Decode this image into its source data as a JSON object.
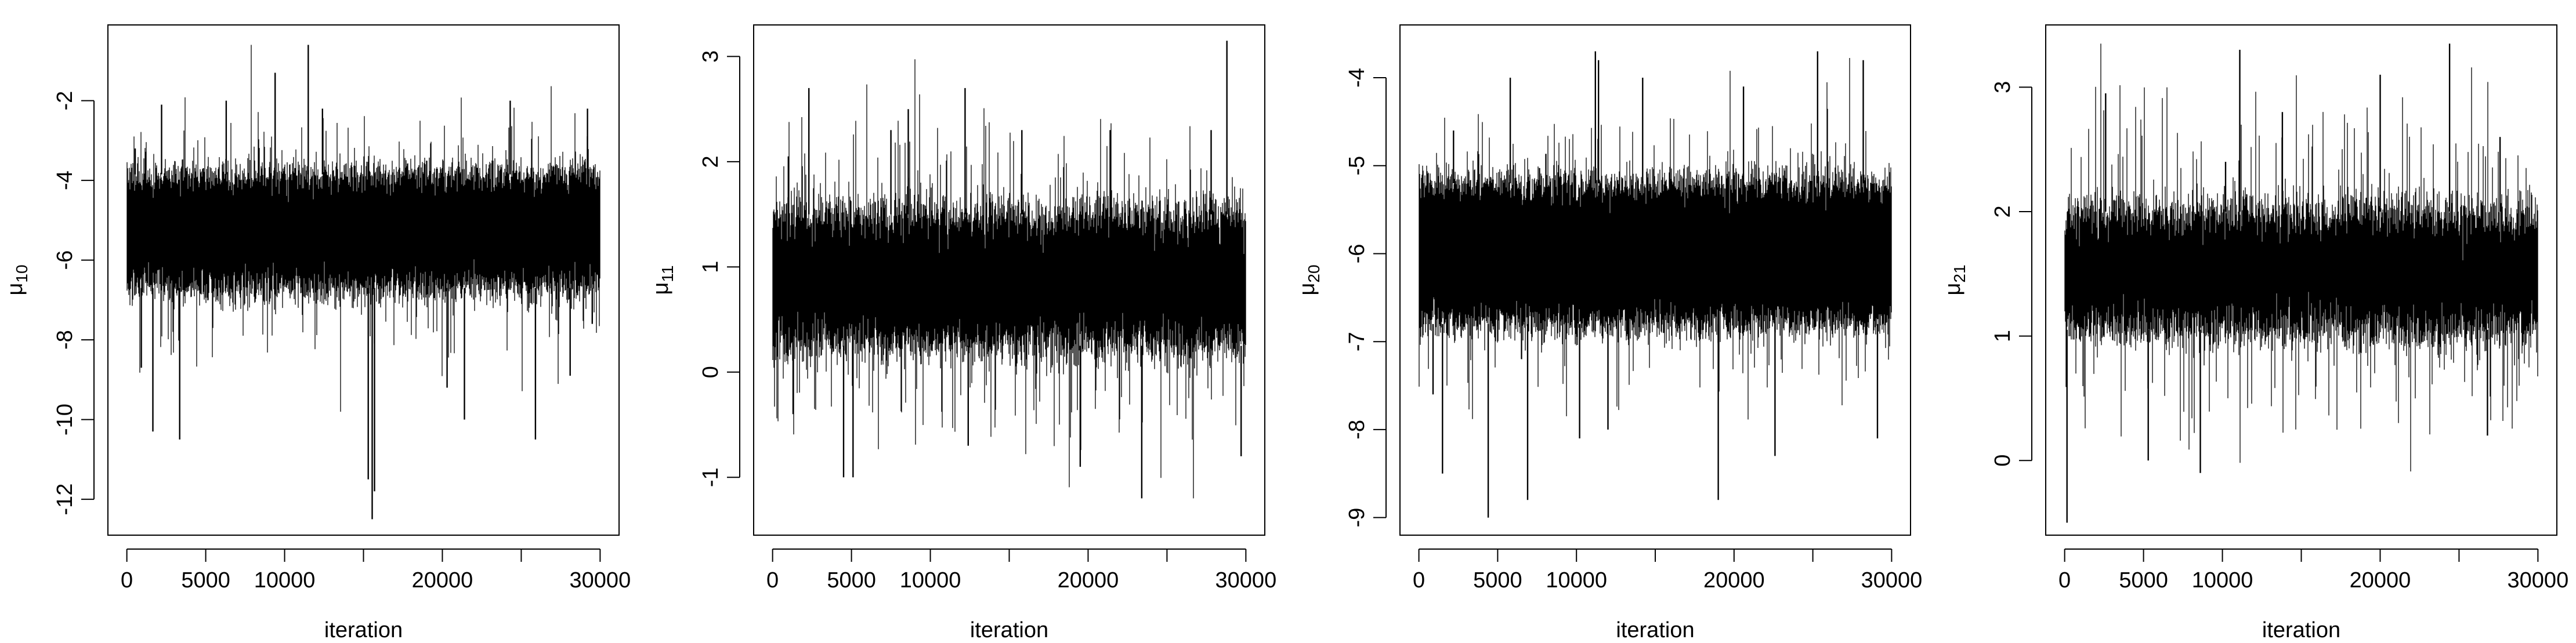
{
  "chart_data": [
    {
      "type": "line",
      "xlabel": "iteration",
      "ylabel": "μ",
      "ylabel_sub": "10",
      "x_ticks": [
        0,
        5000,
        10000,
        20000,
        30000
      ],
      "x_ticks_unlabeled": [
        15000,
        25000
      ],
      "xlim": [
        -1200,
        31200
      ],
      "y_ticks": [
        -2,
        -4,
        -6,
        -8,
        -10,
        -12
      ],
      "ylim": [
        -12.9,
        -0.1
      ],
      "n_iter": 30000,
      "trace": {
        "mean": -5.3,
        "sd": 0.68,
        "band_low": -6.7,
        "band_high": -3.85,
        "min": -12.5,
        "max": -0.6,
        "seed": 11
      },
      "spikes": [
        {
          "x": 530,
          "y": -3.2
        },
        {
          "x": 920,
          "y": -8.7
        },
        {
          "x": 1650,
          "y": -10.3
        },
        {
          "x": 2200,
          "y": -2.1
        },
        {
          "x": 3350,
          "y": -10.5
        },
        {
          "x": 6300,
          "y": -2.0
        },
        {
          "x": 9400,
          "y": -1.3
        },
        {
          "x": 11500,
          "y": -0.6
        },
        {
          "x": 12400,
          "y": -2.2
        },
        {
          "x": 15300,
          "y": -11.5
        },
        {
          "x": 15550,
          "y": -12.5
        },
        {
          "x": 15700,
          "y": -11.8
        },
        {
          "x": 20300,
          "y": -9.2
        },
        {
          "x": 21400,
          "y": -10.0
        },
        {
          "x": 24300,
          "y": -2.0
        },
        {
          "x": 25900,
          "y": -10.5
        },
        {
          "x": 28100,
          "y": -8.9
        },
        {
          "x": 29200,
          "y": -2.2
        },
        {
          "x": 29500,
          "y": -7.6
        }
      ]
    },
    {
      "type": "line",
      "xlabel": "iteration",
      "ylabel": "μ",
      "ylabel_sub": "11",
      "x_ticks": [
        0,
        5000,
        10000,
        20000,
        30000
      ],
      "x_ticks_unlabeled": [
        15000,
        25000
      ],
      "xlim": [
        -1200,
        31200
      ],
      "y_ticks": [
        3,
        2,
        1,
        0,
        -1
      ],
      "ylim": [
        -1.55,
        3.3
      ],
      "n_iter": 30000,
      "trace": {
        "mean": 0.8,
        "sd": 0.35,
        "band_low": 0.25,
        "band_high": 1.5,
        "min": -1.2,
        "max": 3.2,
        "seed": 23
      },
      "spikes": [
        {
          "x": 1000,
          "y": 2.05
        },
        {
          "x": 1300,
          "y": -0.4
        },
        {
          "x": 2300,
          "y": 2.7
        },
        {
          "x": 4500,
          "y": -1.0
        },
        {
          "x": 5100,
          "y": -1.0
        },
        {
          "x": 7500,
          "y": 2.3
        },
        {
          "x": 8600,
          "y": 2.5
        },
        {
          "x": 12200,
          "y": 2.7
        },
        {
          "x": 12400,
          "y": -0.7
        },
        {
          "x": 15800,
          "y": 2.3
        },
        {
          "x": 19500,
          "y": -0.9
        },
        {
          "x": 21400,
          "y": 2.3
        },
        {
          "x": 23400,
          "y": -1.2
        },
        {
          "x": 27800,
          "y": 2.3
        },
        {
          "x": 28800,
          "y": 3.15
        },
        {
          "x": 29700,
          "y": -0.8
        }
      ]
    },
    {
      "type": "line",
      "xlabel": "iteration",
      "ylabel": "μ",
      "ylabel_sub": "20",
      "x_ticks": [
        0,
        5000,
        10000,
        20000,
        30000
      ],
      "x_ticks_unlabeled": [
        15000,
        25000
      ],
      "xlim": [
        -1200,
        31200
      ],
      "y_ticks": [
        -4,
        -5,
        -6,
        -7,
        -8,
        -9
      ],
      "ylim": [
        -9.2,
        -3.4
      ],
      "n_iter": 30000,
      "trace": {
        "mean": -6.0,
        "sd": 0.33,
        "band_low": -6.8,
        "band_high": -5.2,
        "min": -9.0,
        "max": -3.6,
        "seed": 37
      },
      "spikes": [
        {
          "x": 900,
          "y": -7.6
        },
        {
          "x": 1500,
          "y": -8.5
        },
        {
          "x": 2200,
          "y": -4.6
        },
        {
          "x": 4400,
          "y": -9.0
        },
        {
          "x": 5800,
          "y": -4.0
        },
        {
          "x": 6900,
          "y": -8.8
        },
        {
          "x": 10200,
          "y": -8.1
        },
        {
          "x": 11200,
          "y": -3.7
        },
        {
          "x": 11400,
          "y": -3.8
        },
        {
          "x": 12000,
          "y": -8.0
        },
        {
          "x": 14200,
          "y": -4.0
        },
        {
          "x": 19000,
          "y": -8.8
        },
        {
          "x": 20600,
          "y": -4.1
        },
        {
          "x": 22600,
          "y": -8.3
        },
        {
          "x": 25300,
          "y": -3.7
        },
        {
          "x": 28200,
          "y": -3.8
        },
        {
          "x": 29100,
          "y": -8.1
        }
      ]
    },
    {
      "type": "line",
      "xlabel": "iteration",
      "ylabel": "μ",
      "ylabel_sub": "21",
      "x_ticks": [
        0,
        5000,
        10000,
        20000,
        30000
      ],
      "x_ticks_unlabeled": [
        15000,
        25000
      ],
      "xlim": [
        -1200,
        31200
      ],
      "y_ticks": [
        3,
        2,
        1,
        0
      ],
      "ylim": [
        -0.6,
        3.5
      ],
      "n_iter": 30000,
      "trace": {
        "mean": 1.55,
        "sd": 0.3,
        "band_low": 1.05,
        "band_high": 2.0,
        "min": -0.5,
        "max": 3.35,
        "seed": 53
      },
      "spikes": [
        {
          "x": 150,
          "y": -0.5
        },
        {
          "x": 2600,
          "y": 2.95
        },
        {
          "x": 5300,
          "y": 0.0
        },
        {
          "x": 8600,
          "y": -0.1
        },
        {
          "x": 10200,
          "y": 2.4
        },
        {
          "x": 11100,
          "y": 3.3
        },
        {
          "x": 13800,
          "y": 2.8
        },
        {
          "x": 20000,
          "y": 3.1
        },
        {
          "x": 24400,
          "y": 3.35
        },
        {
          "x": 26800,
          "y": 0.2
        },
        {
          "x": 27600,
          "y": 2.6
        }
      ]
    }
  ]
}
